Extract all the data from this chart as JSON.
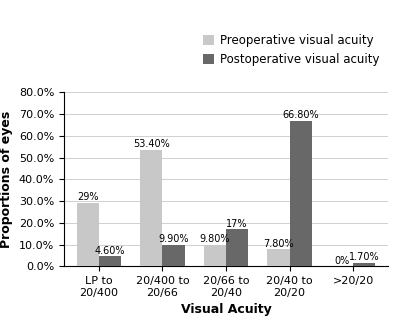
{
  "categories": [
    "LP to\n20/400",
    "20/400 to\n20/66",
    "20/66 to\n20/40",
    "20/40 to\n20/20",
    ">20/20"
  ],
  "preop_values": [
    29.0,
    53.4,
    9.8,
    7.8,
    0.0
  ],
  "postop_values": [
    4.6,
    9.9,
    17.0,
    66.8,
    1.7
  ],
  "preop_labels": [
    "29%",
    "53.40%",
    "9.80%",
    "7.80%",
    "0%"
  ],
  "postop_labels": [
    "4.60%",
    "9.90%",
    "17%",
    "66.80%",
    "1.70%"
  ],
  "preop_color": "#c8c8c8",
  "postop_color": "#686868",
  "xlabel": "Visual Acuity",
  "ylabel": "Proportions of eyes",
  "ylim": [
    0,
    80
  ],
  "yticks": [
    0,
    10,
    20,
    30,
    40,
    50,
    60,
    70,
    80
  ],
  "legend_labels": [
    "Preoperative visual acuity",
    "Postoperative visual acuity"
  ],
  "bar_width": 0.35,
  "label_fontsize": 7,
  "tick_fontsize": 8,
  "axis_label_fontsize": 9,
  "legend_fontsize": 8.5
}
